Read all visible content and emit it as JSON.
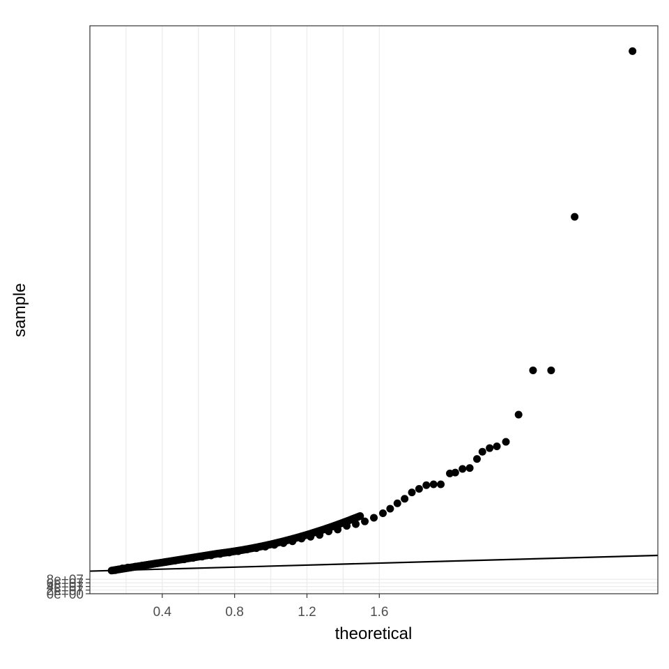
{
  "chart_data": {
    "type": "scatter",
    "title": "",
    "xlabel": "theoretical",
    "ylabel": "sample",
    "x_ticks": [
      {
        "value": 1.6,
        "label": "1.6"
      },
      {
        "value": 1.2,
        "label": "1.2"
      },
      {
        "value": 0.8,
        "label": "0.8"
      },
      {
        "value": 0.4,
        "label": "0.4"
      }
    ],
    "y_ticks": [
      {
        "value": 0,
        "label": "0e+00"
      },
      {
        "value": 20000000,
        "label": "2e+07"
      },
      {
        "value": 40000000,
        "label": "4e+07"
      },
      {
        "value": 60000000,
        "label": "6e+07"
      },
      {
        "value": 80000000,
        "label": "8e+07"
      }
    ],
    "xlim": [
      0.0,
      3.14
    ],
    "ylim": [
      0,
      3140000000
    ],
    "grid": true,
    "reference_line": {
      "x": [
        0.0,
        3.14
      ],
      "y": [
        125000000,
        212000000
      ]
    },
    "colors": {
      "points": "#000000",
      "line": "#000000",
      "grid": "#ebebeb",
      "border": "#333333"
    },
    "points": [
      [
        3.0,
        3000000000
      ],
      [
        2.68,
        2084000000
      ],
      [
        2.55,
        1235000000
      ],
      [
        2.45,
        1235000000
      ],
      [
        2.37,
        990000000
      ],
      [
        2.3,
        840000000
      ],
      [
        2.25,
        815000000
      ],
      [
        2.21,
        805000000
      ],
      [
        2.17,
        785000000
      ],
      [
        2.14,
        745000000
      ],
      [
        2.1,
        695000000
      ],
      [
        2.06,
        690000000
      ],
      [
        2.02,
        670000000
      ],
      [
        1.99,
        665000000
      ],
      [
        1.94,
        605000000
      ],
      [
        1.9,
        605000000
      ],
      [
        1.86,
        600000000
      ],
      [
        1.82,
        580000000
      ],
      [
        1.78,
        560000000
      ],
      [
        1.74,
        525000000
      ],
      [
        1.7,
        500000000
      ],
      [
        1.66,
        470000000
      ],
      [
        1.62,
        445000000
      ],
      [
        1.57,
        420000000
      ],
      [
        1.52,
        400000000
      ],
      [
        1.47,
        385000000
      ],
      [
        1.42,
        375000000
      ],
      [
        1.37,
        355000000
      ],
      [
        1.32,
        345000000
      ],
      [
        1.27,
        325000000
      ],
      [
        1.22,
        315000000
      ],
      [
        1.17,
        305000000
      ],
      [
        1.12,
        290000000
      ],
      [
        1.07,
        280000000
      ],
      [
        1.02,
        270000000
      ],
      [
        0.97,
        260000000
      ],
      [
        0.92,
        252000000
      ],
      [
        0.87,
        245000000
      ],
      [
        0.82,
        235000000
      ],
      [
        0.77,
        228000000
      ],
      [
        0.72,
        220000000
      ],
      [
        0.67,
        212000000
      ],
      [
        0.62,
        205000000
      ],
      [
        0.57,
        198000000
      ],
      [
        0.52,
        190000000
      ],
      [
        0.47,
        183000000
      ],
      [
        0.42,
        176000000
      ],
      [
        0.37,
        168000000
      ],
      [
        0.33,
        162000000
      ],
      [
        0.29,
        156000000
      ],
      [
        0.25,
        150000000
      ],
      [
        0.21,
        145000000
      ],
      [
        0.18,
        140000000
      ],
      [
        0.16,
        135000000
      ],
      [
        0.14,
        130000000
      ]
    ]
  }
}
